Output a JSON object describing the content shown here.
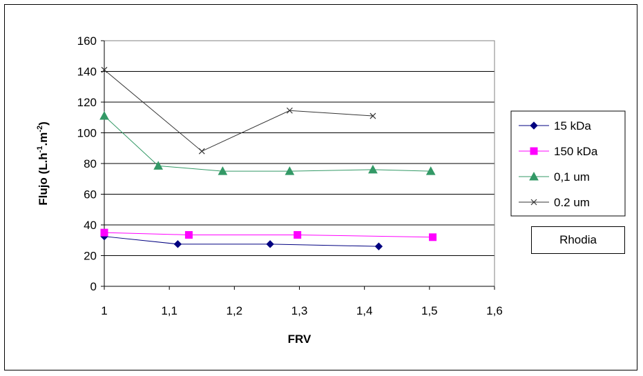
{
  "chart_data": {
    "type": "line",
    "xlabel": "FRV",
    "ylabel_main": "Flujo (L.h",
    "ylabel_sup1": "-1",
    "ylabel_mid": ".m",
    "ylabel_sup2": "-2",
    "ylabel_end": ")",
    "xlim": [
      1,
      1.6
    ],
    "ylim": [
      0,
      160
    ],
    "x_ticks": [
      1,
      1.1,
      1.2,
      1.3,
      1.4,
      1.5,
      1.6
    ],
    "x_tick_labels": [
      "1",
      "1,1",
      "1,2",
      "1,3",
      "1,4",
      "1,5",
      "1,6"
    ],
    "y_ticks": [
      0,
      20,
      40,
      60,
      80,
      100,
      120,
      140,
      160
    ],
    "y_tick_labels": [
      "0",
      "20",
      "40",
      "60",
      "80",
      "100",
      "120",
      "140",
      "160"
    ],
    "grid": "horizontal",
    "legend_position": "right",
    "series": [
      {
        "name": "15 kDa",
        "color": "#000080",
        "marker": "diamond",
        "x": [
          1.0,
          1.113,
          1.255,
          1.422
        ],
        "y": [
          32.5,
          27.5,
          27.5,
          26
        ]
      },
      {
        "name": "150 kDa",
        "color": "#FF00FF",
        "marker": "square",
        "x": [
          1.0,
          1.13,
          1.297,
          1.505
        ],
        "y": [
          35,
          33.5,
          33.5,
          32
        ]
      },
      {
        "name": "0,1 um",
        "color": "#339966",
        "marker": "triangle",
        "x": [
          1.0,
          1.083,
          1.182,
          1.285,
          1.413,
          1.502
        ],
        "y": [
          111,
          78.5,
          75,
          75,
          76,
          75
        ]
      },
      {
        "name": "0.2 um",
        "color": "#333333",
        "marker": "x",
        "x": [
          1.0,
          1.15,
          1.285,
          1.413
        ],
        "y": [
          141,
          88,
          114.5,
          111
        ]
      }
    ],
    "annotation": "Rhodia"
  }
}
